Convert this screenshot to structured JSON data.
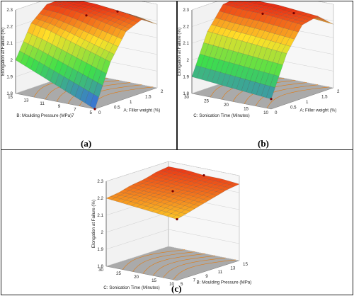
{
  "colors": {
    "surface_low": "#3a5ff0",
    "surface_mid": "#3ee04a",
    "surface_high": "#ffe028",
    "surface_top": "#e81010",
    "floor": "#aaaaaa",
    "contour": "#e07a10"
  },
  "panel_labels": [
    "(a)",
    "(b)",
    "(c)"
  ],
  "chart_data": [
    {
      "type": "surface3d",
      "panel": "(a)",
      "zlabel": "Elongation at Failure (%)",
      "xlabel": "A: Filler weight (%)",
      "ylabel": "B: Moulding Pressure (MPa)7",
      "x_ticks": [
        "0",
        "0.5",
        "1",
        "1.5",
        "2"
      ],
      "y_ticks": [
        "5",
        "7",
        "9",
        "11",
        "13",
        "15"
      ],
      "z_ticks": [
        "1.8",
        "1.9",
        "2",
        "2.1",
        "2.2",
        "2.3"
      ],
      "xlim": [
        0,
        2
      ],
      "ylim": [
        5,
        15
      ],
      "zlim": [
        1.8,
        2.3
      ],
      "z_grid": [
        [
          1.8,
          2.05,
          2.2,
          2.24,
          2.18
        ],
        [
          1.84,
          2.08,
          2.22,
          2.26,
          2.2
        ],
        [
          1.88,
          2.11,
          2.24,
          2.27,
          2.21
        ],
        [
          1.92,
          2.14,
          2.26,
          2.28,
          2.21
        ],
        [
          1.96,
          2.17,
          2.27,
          2.28,
          2.2
        ],
        [
          2.0,
          2.19,
          2.27,
          2.27,
          2.18
        ]
      ]
    },
    {
      "type": "surface3d",
      "panel": "(b)",
      "zlabel": "Elongation at Failure (%)",
      "xlabel": "A: Filler weight (%)",
      "ylabel": "C: Sonication Time (Minutes)",
      "x_ticks": [
        "0",
        "0.5",
        "1",
        "1.5",
        "2"
      ],
      "y_ticks": [
        "10",
        "15",
        "20",
        "25",
        "30"
      ],
      "z_ticks": [
        "1.8",
        "1.9",
        "2",
        "2.1",
        "2.2",
        "2.3"
      ],
      "xlim": [
        0,
        2
      ],
      "ylim": [
        10,
        30
      ],
      "zlim": [
        1.8,
        2.3
      ],
      "z_grid": [
        [
          1.86,
          2.1,
          2.24,
          2.26,
          2.18
        ],
        [
          1.87,
          2.11,
          2.25,
          2.27,
          2.19
        ],
        [
          1.88,
          2.12,
          2.26,
          2.28,
          2.2
        ],
        [
          1.89,
          2.13,
          2.26,
          2.28,
          2.2
        ],
        [
          1.9,
          2.14,
          2.27,
          2.28,
          2.21
        ]
      ]
    },
    {
      "type": "surface3d",
      "panel": "(c)",
      "zlabel": "Elongation at Failure (%)",
      "xlabel": "B: Moulding Pressure (MPa)",
      "ylabel": "C: Sonication Time (Minutes)",
      "x_ticks": [
        "5",
        "7",
        "9",
        "11",
        "13",
        "15"
      ],
      "y_ticks": [
        "10",
        "15",
        "20",
        "25",
        "30"
      ],
      "z_ticks": [
        "1.8",
        "1.9",
        "2",
        "2.1",
        "2.2",
        "2.3"
      ],
      "xlim": [
        5,
        15
      ],
      "ylim": [
        10,
        30
      ],
      "zlim": [
        1.8,
        2.3
      ],
      "z_grid": [
        [
          2.16,
          2.18,
          2.2,
          2.22,
          2.24,
          2.25
        ],
        [
          2.17,
          2.19,
          2.21,
          2.23,
          2.24,
          2.26
        ],
        [
          2.18,
          2.2,
          2.22,
          2.23,
          2.25,
          2.26
        ],
        [
          2.19,
          2.21,
          2.22,
          2.24,
          2.25,
          2.27
        ],
        [
          2.2,
          2.21,
          2.23,
          2.24,
          2.26,
          2.27
        ]
      ]
    }
  ]
}
